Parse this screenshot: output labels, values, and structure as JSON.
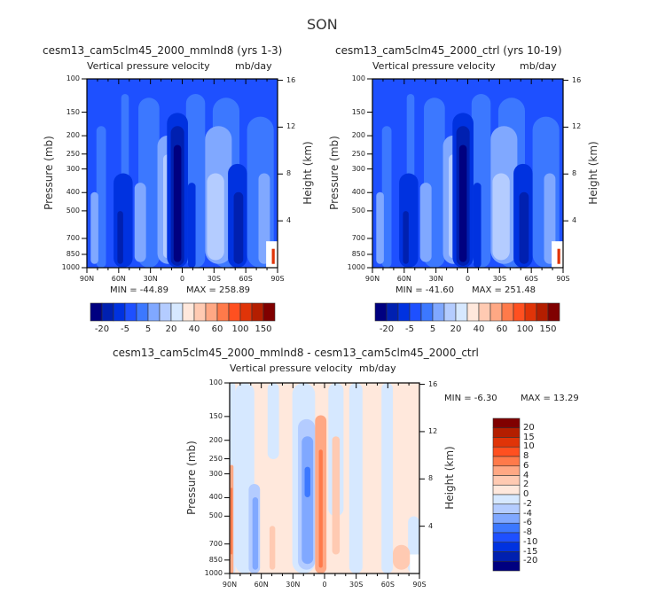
{
  "title": "SON",
  "chart_data": [
    {
      "type": "heatmap",
      "subtitle": "cesm13_cam5clm45_2000_mmlnd8 (yrs 1-3)",
      "variable": "Vertical pressure velocity",
      "units": "mb/day",
      "ylabel": "Pressure (mb)",
      "ylabel_right": "Height (km)",
      "x_ticks": [
        "90N",
        "60N",
        "30N",
        "0",
        "30S",
        "60S",
        "90S"
      ],
      "y_ticks": [
        "100",
        "150",
        "200",
        "250",
        "300",
        "400",
        "500",
        "700",
        "850",
        "1000"
      ],
      "y_right_ticks": [
        "16",
        "12",
        "8",
        "4"
      ],
      "min_label": "MIN = -44.89",
      "max_label": "MAX = 258.89",
      "colorbar": {
        "orientation": "horizontal",
        "labels": [
          "-20",
          "-5",
          "5",
          "20",
          "40",
          "60",
          "100",
          "150"
        ],
        "colors": [
          "#000080",
          "#0020b0",
          "#0032e0",
          "#1e50ff",
          "#3c78ff",
          "#80a8ff",
          "#b4ccff",
          "#d6e8ff",
          "#ffe8dc",
          "#ffcab2",
          "#ffa884",
          "#ff7a4a",
          "#ff5020",
          "#e03408",
          "#b41e00",
          "#800000"
        ]
      }
    },
    {
      "type": "heatmap",
      "subtitle": "cesm13_cam5clm45_2000_ctrl (yrs 10-19)",
      "variable": "Vertical pressure velocity",
      "units": "mb/day",
      "ylabel": "Pressure (mb)",
      "ylabel_right": "Height (km)",
      "x_ticks": [
        "90N",
        "60N",
        "30N",
        "0",
        "30S",
        "60S",
        "90S"
      ],
      "y_ticks": [
        "100",
        "150",
        "200",
        "250",
        "300",
        "400",
        "500",
        "700",
        "850",
        "1000"
      ],
      "y_right_ticks": [
        "16",
        "12",
        "8",
        "4"
      ],
      "min_label": "MIN = -41.60",
      "max_label": "MAX = 251.48",
      "colorbar": {
        "orientation": "horizontal",
        "labels": [
          "-20",
          "-5",
          "5",
          "20",
          "40",
          "60",
          "100",
          "150"
        ],
        "colors": [
          "#000080",
          "#0020b0",
          "#0032e0",
          "#1e50ff",
          "#3c78ff",
          "#80a8ff",
          "#b4ccff",
          "#d6e8ff",
          "#ffe8dc",
          "#ffcab2",
          "#ffa884",
          "#ff7a4a",
          "#ff5020",
          "#e03408",
          "#b41e00",
          "#800000"
        ]
      }
    },
    {
      "type": "heatmap",
      "subtitle": "cesm13_cam5clm45_2000_mmlnd8 - cesm13_cam5clm45_2000_ctrl",
      "variable": "Vertical pressure velocity",
      "units": "mb/day",
      "ylabel": "Pressure (mb)",
      "ylabel_right": "Height (km)",
      "x_ticks": [
        "90N",
        "60N",
        "30N",
        "0",
        "30S",
        "60S",
        "90S"
      ],
      "y_ticks": [
        "100",
        "150",
        "200",
        "250",
        "300",
        "400",
        "500",
        "700",
        "850",
        "1000"
      ],
      "y_right_ticks": [
        "16",
        "12",
        "8",
        "4"
      ],
      "min_label": "MIN =   -6.30",
      "max_label": "MAX =   13.29",
      "colorbar": {
        "orientation": "vertical",
        "labels": [
          "20",
          "15",
          "10",
          "8",
          "6",
          "4",
          "2",
          "0",
          "-2",
          "-4",
          "-6",
          "-8",
          "-10",
          "-15",
          "-20"
        ],
        "colors": [
          "#800000",
          "#b41e00",
          "#e03408",
          "#ff5020",
          "#ff7a4a",
          "#ffa884",
          "#ffcab2",
          "#ffe8dc",
          "#d6e8ff",
          "#b4ccff",
          "#80a8ff",
          "#3c78ff",
          "#1e50ff",
          "#0032e0",
          "#0020b0",
          "#000080"
        ]
      }
    }
  ]
}
